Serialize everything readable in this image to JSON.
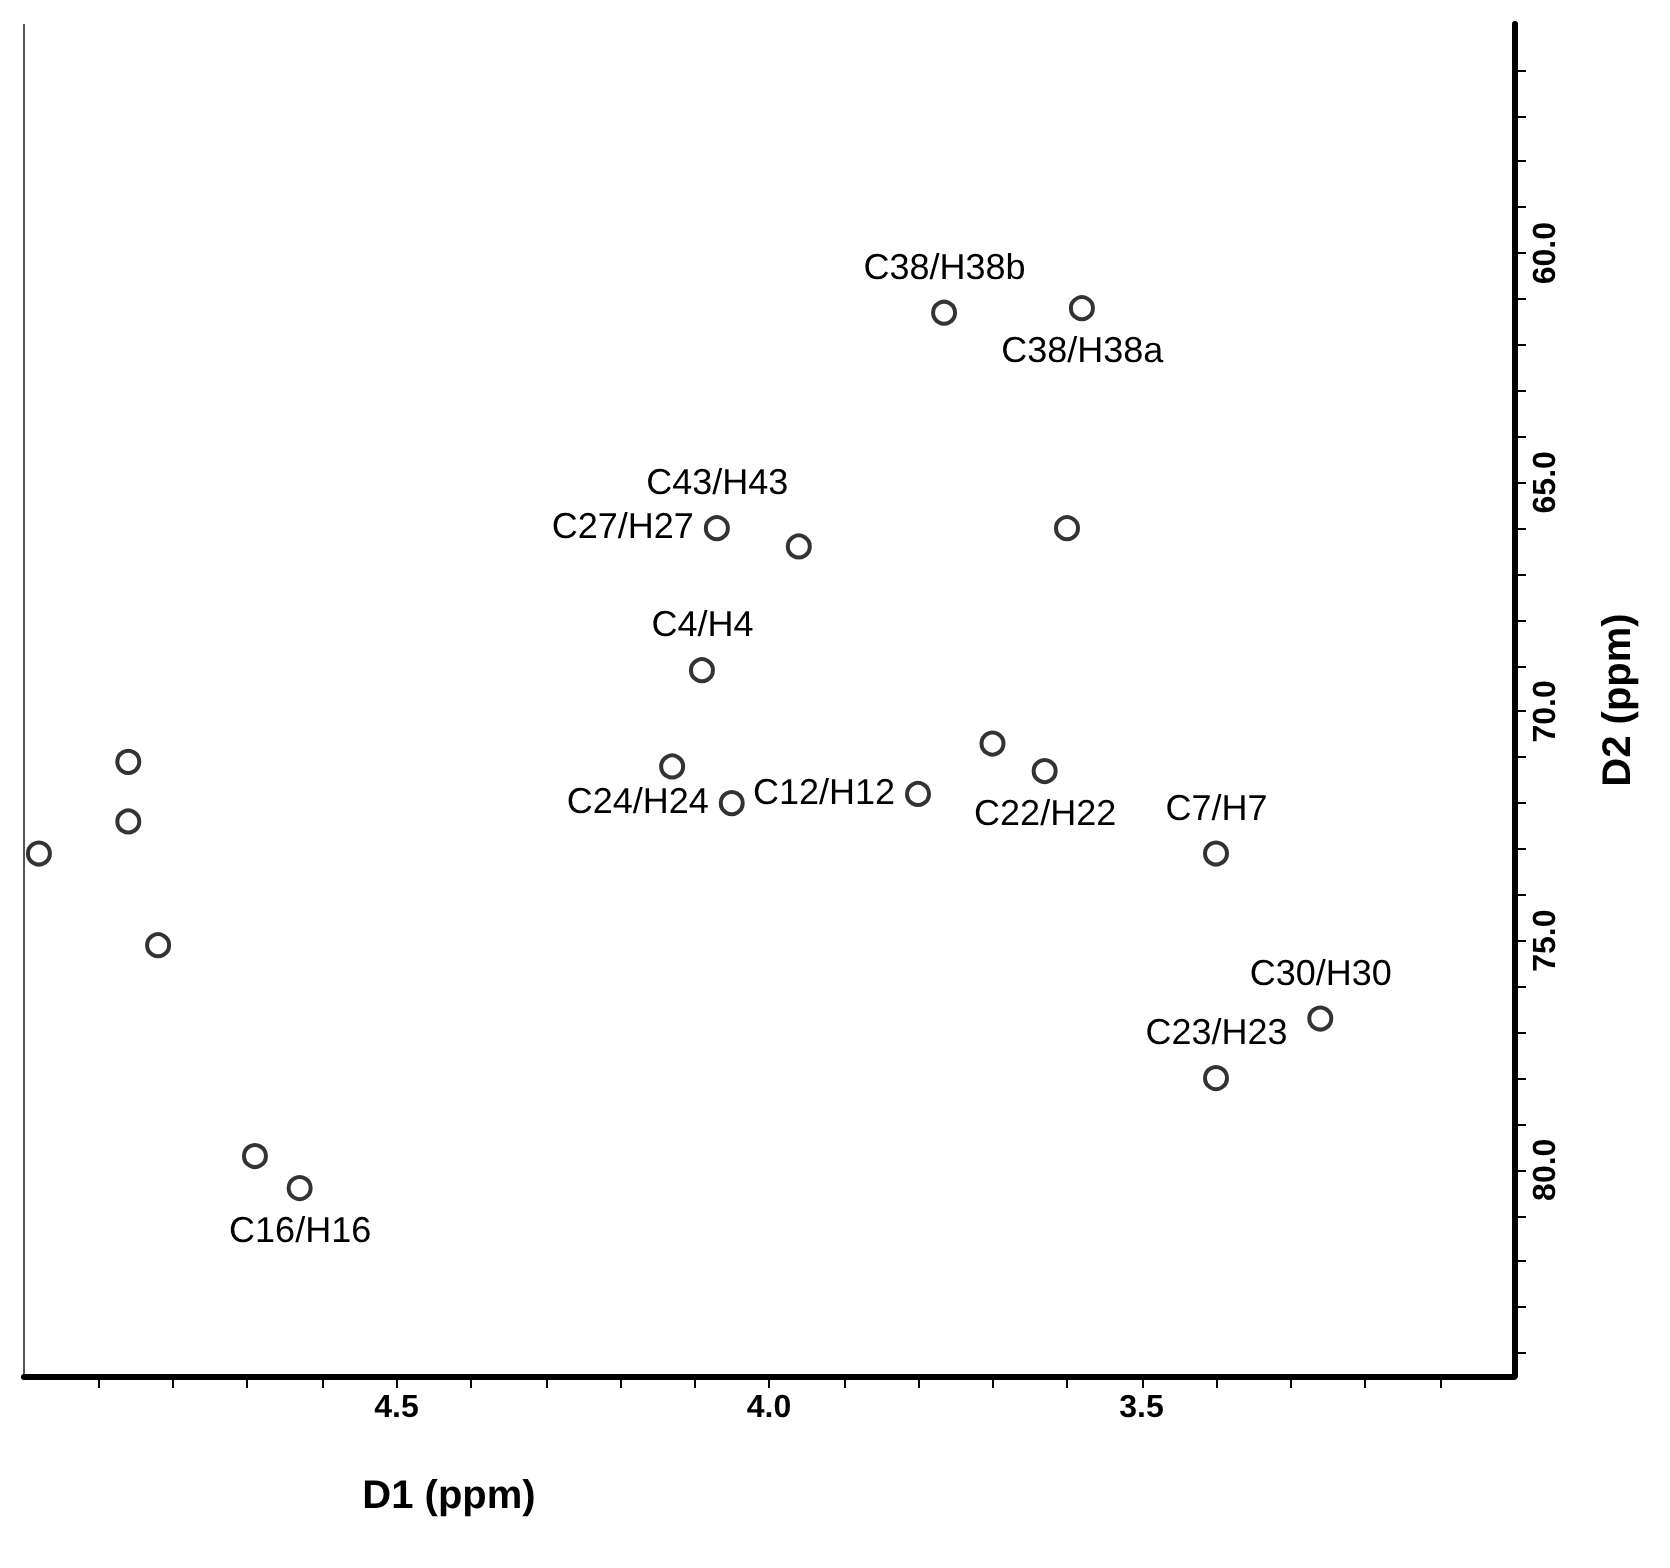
{
  "chart_data": {
    "type": "scatter",
    "xlabel": "D1 (ppm)",
    "ylabel": "D2 (ppm)",
    "xlim": [
      5.0,
      3.0
    ],
    "ylim": [
      84.5,
      55.0
    ],
    "xticks": [
      {
        "value": 4.9,
        "label": null
      },
      {
        "value": 4.8,
        "label": null
      },
      {
        "value": 4.7,
        "label": null
      },
      {
        "value": 4.6,
        "label": null
      },
      4.5,
      {
        "value": 4.4,
        "label": null
      },
      {
        "value": 4.3,
        "label": null
      },
      {
        "value": 4.2,
        "label": null
      },
      {
        "value": 4.1,
        "label": null
      },
      {
        "value": 4.0,
        "label": "4.0"
      },
      {
        "value": 3.9,
        "label": null
      },
      {
        "value": 3.8,
        "label": null
      },
      {
        "value": 3.7,
        "label": null
      },
      {
        "value": 3.6,
        "label": null
      },
      3.5,
      {
        "value": 3.4,
        "label": null
      },
      {
        "value": 3.3,
        "label": null
      },
      {
        "value": 3.2,
        "label": null
      },
      {
        "value": 3.1,
        "label": null
      }
    ],
    "yticks": [
      {
        "value": 56,
        "label": null
      },
      {
        "value": 57,
        "label": null
      },
      {
        "value": 58,
        "label": null
      },
      {
        "value": 59,
        "label": null
      },
      {
        "value": 60,
        "label": "60.0"
      },
      {
        "value": 61,
        "label": null
      },
      {
        "value": 62,
        "label": null
      },
      {
        "value": 63,
        "label": null
      },
      {
        "value": 64,
        "label": null
      },
      {
        "value": 65,
        "label": "65.0"
      },
      {
        "value": 66,
        "label": null
      },
      {
        "value": 67,
        "label": null
      },
      {
        "value": 68,
        "label": null
      },
      {
        "value": 69,
        "label": null
      },
      {
        "value": 70,
        "label": "70.0"
      },
      {
        "value": 71,
        "label": null
      },
      {
        "value": 72,
        "label": null
      },
      {
        "value": 73,
        "label": null
      },
      {
        "value": 74,
        "label": null
      },
      {
        "value": 75,
        "label": "75.0"
      },
      {
        "value": 76,
        "label": null
      },
      {
        "value": 77,
        "label": null
      },
      {
        "value": 78,
        "label": null
      },
      {
        "value": 79,
        "label": null
      },
      {
        "value": 80,
        "label": "80.0"
      },
      {
        "value": 81,
        "label": null
      },
      {
        "value": 82,
        "label": null
      },
      {
        "value": 83,
        "label": null
      },
      {
        "value": 84,
        "label": null
      }
    ],
    "series": [
      {
        "color": "#000000",
        "x": [
          3.765,
          3.58,
          3.6,
          4.07,
          3.96,
          4.09,
          4.05,
          4.13,
          3.8,
          3.63,
          3.7,
          3.4,
          3.26,
          3.4,
          4.63,
          4.86,
          4.86,
          4.98,
          4.82,
          4.69
        ],
        "values": [
          61.3,
          61.2,
          66.0,
          66.0,
          66.4,
          69.1,
          72.0,
          71.2,
          71.8,
          71.3,
          70.7,
          73.1,
          76.7,
          78.0,
          80.4,
          71.1,
          72.4,
          73.1,
          75.1,
          79.7
        ]
      }
    ],
    "marker": "circle",
    "grid": false,
    "annotations": [
      {
        "text": "C38/H38b",
        "x": 3.765,
        "y": 61.3
      },
      {
        "text": "C38/H38a",
        "x": 3.58,
        "y": 61.2
      },
      {
        "text": "C43/H43",
        "x": 4.07,
        "y": 66.0
      },
      {
        "text": "C27/H27",
        "x": 4.07,
        "y": 66.0
      },
      {
        "text": "C4/H4",
        "x": 4.09,
        "y": 69.1
      },
      {
        "text": "C12/H12",
        "x": 3.8,
        "y": 71.8
      },
      {
        "text": "C22/H22",
        "x": 3.63,
        "y": 71.3
      },
      {
        "text": "C24/H24",
        "x": 4.05,
        "y": 72.0
      },
      {
        "text": "C7/H7",
        "x": 3.4,
        "y": 73.1
      },
      {
        "text": "C30/H30",
        "x": 3.26,
        "y": 76.7
      },
      {
        "text": "C23/H23",
        "x": 3.4,
        "y": 78.0
      },
      {
        "text": "C16/H16",
        "x": 4.63,
        "y": 80.4
      }
    ]
  }
}
